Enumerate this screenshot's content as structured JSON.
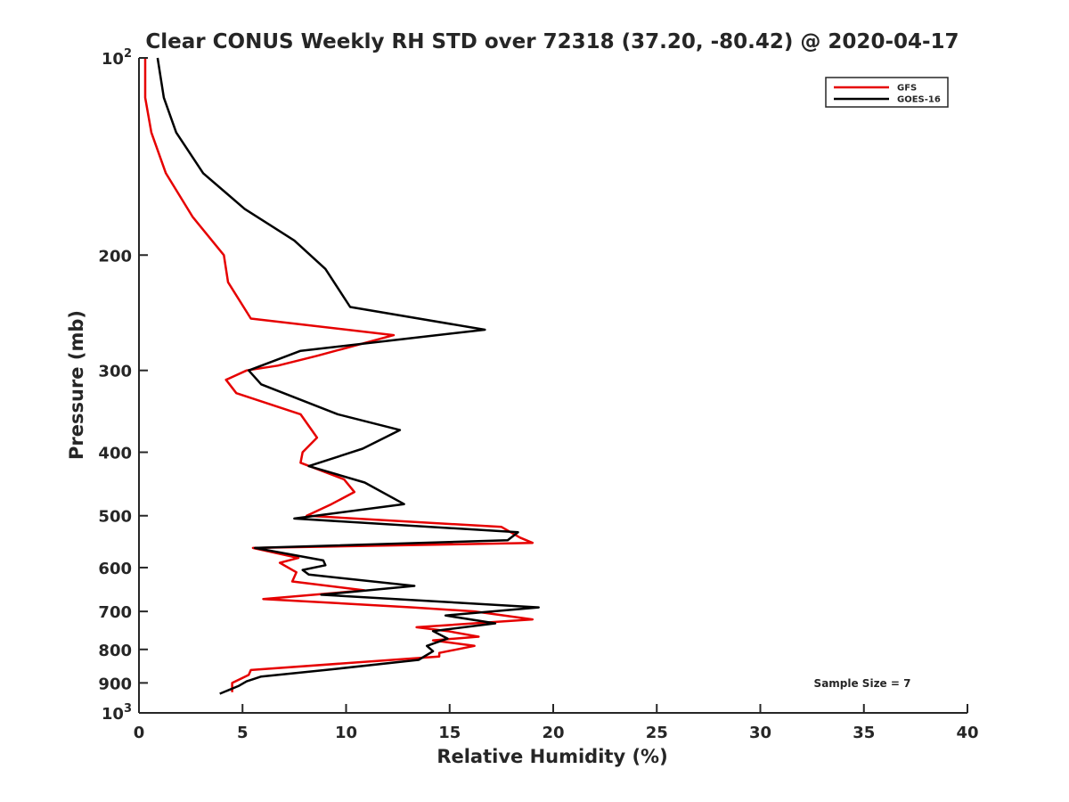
{
  "chart_data": {
    "type": "line",
    "title": "Clear CONUS Weekly RH STD over 72318 (37.20, -80.42) @ 2020-04-17",
    "xlabel": "Relative Humidity (%)",
    "ylabel": "Pressure (mb)",
    "xlim": [
      0,
      40
    ],
    "ylim": [
      100,
      1000
    ],
    "y_scale": "log",
    "y_reversed": true,
    "grid": false,
    "legend_position": "top-right",
    "x_ticks": [
      {
        "value": 0,
        "label": "0"
      },
      {
        "value": 5,
        "label": "5"
      },
      {
        "value": 10,
        "label": "10"
      },
      {
        "value": 15,
        "label": "15"
      },
      {
        "value": 20,
        "label": "20"
      },
      {
        "value": 25,
        "label": "25"
      },
      {
        "value": 30,
        "label": "30"
      },
      {
        "value": 35,
        "label": "35"
      },
      {
        "value": 40,
        "label": "40"
      }
    ],
    "y_ticks": [
      {
        "value": 100,
        "base": "10",
        "exp": "2"
      },
      {
        "value": 200,
        "base": "200",
        "exp": ""
      },
      {
        "value": 300,
        "base": "300",
        "exp": ""
      },
      {
        "value": 400,
        "base": "400",
        "exp": ""
      },
      {
        "value": 500,
        "base": "500",
        "exp": ""
      },
      {
        "value": 600,
        "base": "600",
        "exp": ""
      },
      {
        "value": 700,
        "base": "700",
        "exp": ""
      },
      {
        "value": 800,
        "base": "800",
        "exp": ""
      },
      {
        "value": 900,
        "base": "900",
        "exp": ""
      },
      {
        "value": 1000,
        "base": "10",
        "exp": "3"
      }
    ],
    "series": [
      {
        "name": "GFS",
        "color": "#e60000",
        "points": [
          [
            0.3,
            100
          ],
          [
            0.3,
            115
          ],
          [
            0.6,
            130
          ],
          [
            1.3,
            150
          ],
          [
            2.6,
            175
          ],
          [
            4.1,
            200
          ],
          [
            4.3,
            220
          ],
          [
            5.4,
            250
          ],
          [
            12.3,
            265
          ],
          [
            8.6,
            285
          ],
          [
            6.7,
            295
          ],
          [
            5.2,
            300
          ],
          [
            4.2,
            310
          ],
          [
            4.7,
            325
          ],
          [
            7.8,
            350
          ],
          [
            8.6,
            380
          ],
          [
            7.9,
            400
          ],
          [
            7.8,
            415
          ],
          [
            9.9,
            440
          ],
          [
            10.4,
            460
          ],
          [
            9.3,
            480
          ],
          [
            8.1,
            500
          ],
          [
            17.5,
            520
          ],
          [
            18.4,
            540
          ],
          [
            19.0,
            550
          ],
          [
            5.5,
            560
          ],
          [
            7.7,
            580
          ],
          [
            6.8,
            590
          ],
          [
            7.6,
            610
          ],
          [
            7.4,
            630
          ],
          [
            10.9,
            650
          ],
          [
            6.0,
            670
          ],
          [
            13.2,
            690
          ],
          [
            16.2,
            700
          ],
          [
            19.0,
            720
          ],
          [
            13.4,
            740
          ],
          [
            14.9,
            750
          ],
          [
            16.4,
            765
          ],
          [
            14.2,
            775
          ],
          [
            16.2,
            790
          ],
          [
            14.5,
            810
          ],
          [
            14.5,
            820
          ],
          [
            5.4,
            860
          ],
          [
            5.3,
            875
          ],
          [
            4.5,
            900
          ],
          [
            4.5,
            930
          ]
        ]
      },
      {
        "name": "GOES-16",
        "color": "#000000",
        "points": [
          [
            0.9,
            100
          ],
          [
            1.2,
            115
          ],
          [
            1.8,
            130
          ],
          [
            3.1,
            150
          ],
          [
            5.1,
            170
          ],
          [
            7.5,
            190
          ],
          [
            9.0,
            210
          ],
          [
            10.2,
            240
          ],
          [
            16.7,
            260
          ],
          [
            7.8,
            280
          ],
          [
            5.3,
            300
          ],
          [
            5.9,
            315
          ],
          [
            9.6,
            350
          ],
          [
            12.6,
            370
          ],
          [
            10.8,
            395
          ],
          [
            8.2,
            420
          ],
          [
            10.9,
            445
          ],
          [
            12.8,
            480
          ],
          [
            7.5,
            505
          ],
          [
            18.3,
            530
          ],
          [
            17.8,
            545
          ],
          [
            5.6,
            560
          ],
          [
            8.9,
            585
          ],
          [
            9.0,
            595
          ],
          [
            7.9,
            605
          ],
          [
            8.2,
            615
          ],
          [
            13.3,
            640
          ],
          [
            8.8,
            660
          ],
          [
            19.3,
            690
          ],
          [
            14.8,
            710
          ],
          [
            17.2,
            730
          ],
          [
            14.2,
            750
          ],
          [
            14.9,
            770
          ],
          [
            13.9,
            790
          ],
          [
            14.2,
            805
          ],
          [
            13.5,
            830
          ],
          [
            9.0,
            860
          ],
          [
            5.9,
            880
          ],
          [
            5.2,
            895
          ],
          [
            4.8,
            910
          ],
          [
            3.9,
            935
          ]
        ]
      }
    ],
    "annotations": [
      {
        "text": "Sample Size = 7",
        "x": 35.0,
        "y": 900
      }
    ]
  }
}
